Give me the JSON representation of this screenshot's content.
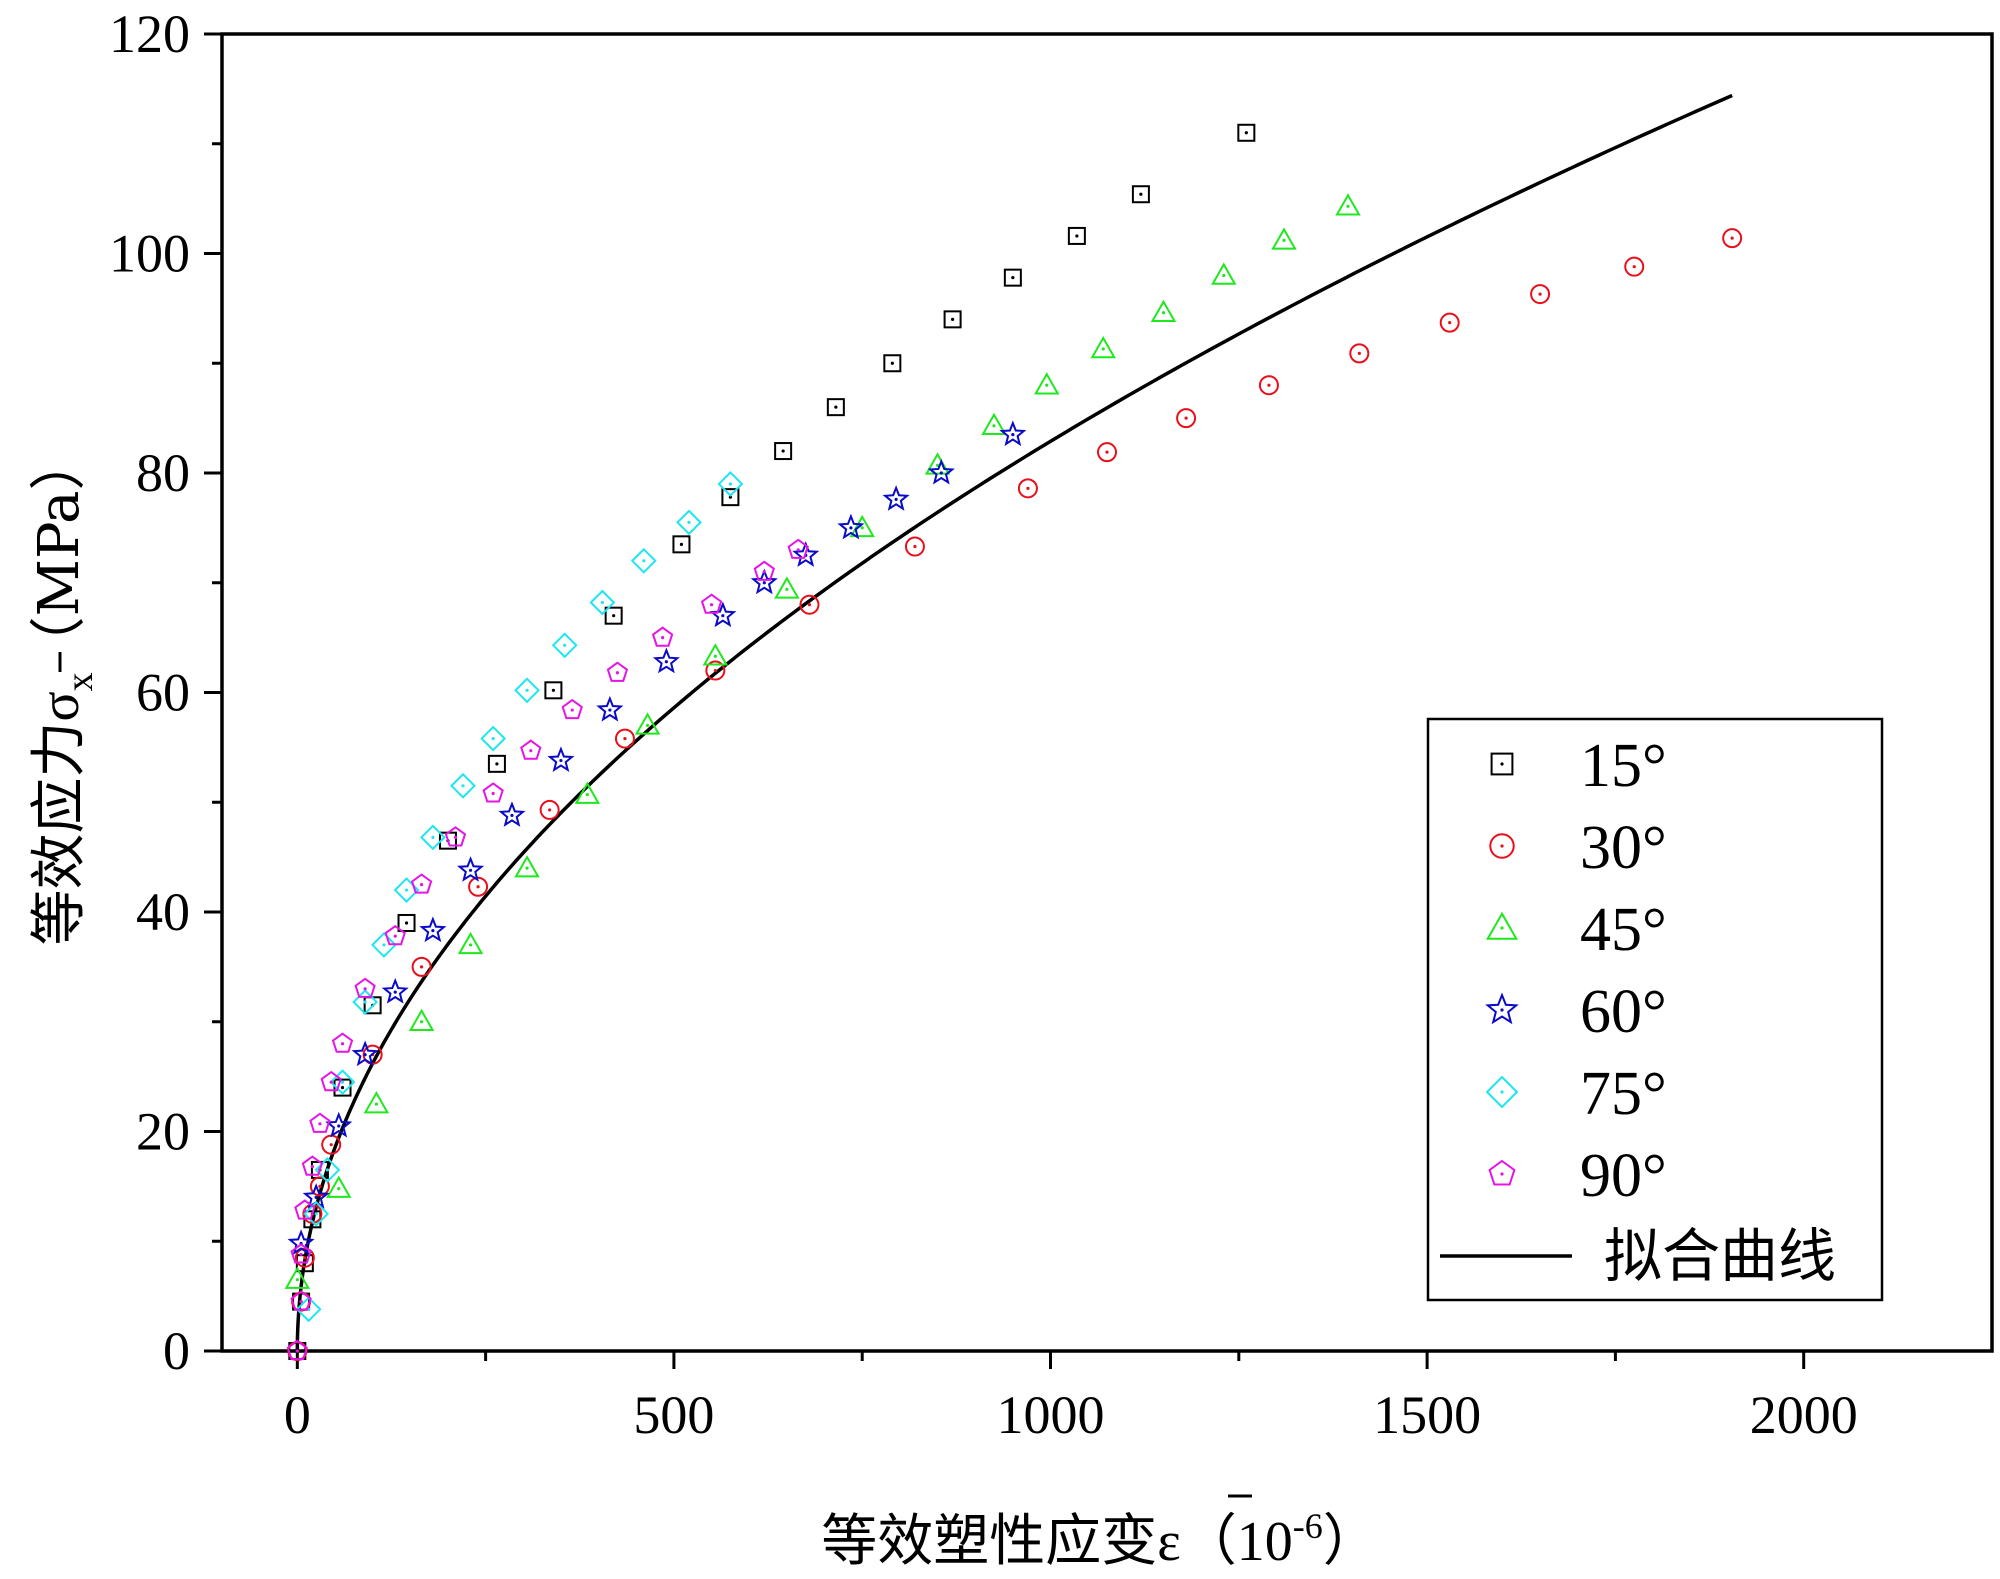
{
  "chart_data": {
    "type": "scatter",
    "xlabel": "等效塑性应变ε（10-6）",
    "xlabel_parts": {
      "main": "等效塑性应变",
      "symbol": "ε",
      "unit_open": "（10",
      "unit_exp": "-6",
      "unit_close": "）"
    },
    "ylabel": "等效应力σx（MPa）",
    "ylabel_parts": {
      "main": "等效应力",
      "symbol": "σ",
      "subscript": "x",
      "unit": "（MPa）"
    },
    "xlim": [
      -100,
      2250
    ],
    "ylim": [
      0,
      120
    ],
    "xticks": [
      0,
      500,
      1000,
      1500,
      2000
    ],
    "xtick_labels": [
      "0",
      "500",
      "1000",
      "1500",
      "2000"
    ],
    "yticks": [
      0,
      20,
      40,
      60,
      80,
      100,
      120
    ],
    "ytick_labels": [
      "0",
      "20",
      "40",
      "60",
      "80",
      "100",
      "120"
    ],
    "grid": false,
    "legend_position": "lower-right",
    "series": [
      {
        "name": "15°",
        "marker": "square",
        "color": "#000000",
        "points": [
          [
            0,
            0
          ],
          [
            5,
            4.5
          ],
          [
            10,
            8
          ],
          [
            20,
            12
          ],
          [
            30,
            16.5
          ],
          [
            60,
            24
          ],
          [
            100,
            31.5
          ],
          [
            145,
            39
          ],
          [
            200,
            46.5
          ],
          [
            265,
            53.5
          ],
          [
            340,
            60.2
          ],
          [
            420,
            67
          ],
          [
            510,
            73.5
          ],
          [
            575,
            77.8
          ],
          [
            645,
            82
          ],
          [
            715,
            86
          ],
          [
            790,
            90
          ],
          [
            870,
            94
          ],
          [
            950,
            97.8
          ],
          [
            1035,
            101.6
          ],
          [
            1120,
            105.4
          ],
          [
            1260,
            111
          ]
        ]
      },
      {
        "name": "30°",
        "marker": "circle",
        "color": "#e8101a",
        "points": [
          [
            0,
            0
          ],
          [
            5,
            4.5
          ],
          [
            10,
            8.5
          ],
          [
            20,
            12.5
          ],
          [
            30,
            15
          ],
          [
            45,
            18.8
          ],
          [
            100,
            27
          ],
          [
            165,
            35
          ],
          [
            240,
            42.3
          ],
          [
            335,
            49.3
          ],
          [
            435,
            55.8
          ],
          [
            555,
            62
          ],
          [
            680,
            68
          ],
          [
            820,
            73.3
          ],
          [
            970,
            78.6
          ],
          [
            1075,
            81.9
          ],
          [
            1180,
            85
          ],
          [
            1290,
            88
          ],
          [
            1410,
            90.9
          ],
          [
            1530,
            93.7
          ],
          [
            1650,
            96.3
          ],
          [
            1775,
            98.8
          ],
          [
            1905,
            101.4
          ]
        ]
      },
      {
        "name": "45°",
        "marker": "triangle",
        "color": "#1ee81e",
        "points": [
          [
            0,
            6.5
          ],
          [
            55,
            14.8
          ],
          [
            105,
            22.5
          ],
          [
            165,
            30
          ],
          [
            230,
            37
          ],
          [
            305,
            44
          ],
          [
            385,
            50.7
          ],
          [
            465,
            57
          ],
          [
            555,
            63.3
          ],
          [
            650,
            69.4
          ],
          [
            750,
            75
          ],
          [
            850,
            80.7
          ],
          [
            925,
            84.3
          ],
          [
            995,
            88
          ],
          [
            1070,
            91.3
          ],
          [
            1150,
            94.6
          ],
          [
            1230,
            98
          ],
          [
            1310,
            101.2
          ],
          [
            1395,
            104.3
          ]
        ]
      },
      {
        "name": "60°",
        "marker": "star",
        "color": "#0a0ac8",
        "points": [
          [
            5,
            9.8
          ],
          [
            25,
            14
          ],
          [
            55,
            20.5
          ],
          [
            90,
            27
          ],
          [
            130,
            32.7
          ],
          [
            180,
            38.3
          ],
          [
            230,
            43.8
          ],
          [
            285,
            48.8
          ],
          [
            350,
            53.8
          ],
          [
            415,
            58.4
          ],
          [
            490,
            62.8
          ],
          [
            565,
            67
          ],
          [
            620,
            70
          ],
          [
            675,
            72.5
          ],
          [
            735,
            75
          ],
          [
            795,
            77.6
          ],
          [
            855,
            80
          ],
          [
            950,
            83.5
          ]
        ]
      },
      {
        "name": "75°",
        "marker": "diamond",
        "color": "#1ee6f0",
        "points": [
          [
            15,
            3.8
          ],
          [
            25,
            12.5
          ],
          [
            40,
            16.5
          ],
          [
            60,
            24.5
          ],
          [
            90,
            31.8
          ],
          [
            115,
            37
          ],
          [
            145,
            42
          ],
          [
            180,
            46.8
          ],
          [
            220,
            51.5
          ],
          [
            260,
            55.8
          ],
          [
            305,
            60.2
          ],
          [
            355,
            64.3
          ],
          [
            405,
            68.2
          ],
          [
            460,
            72
          ],
          [
            520,
            75.5
          ],
          [
            575,
            79
          ]
        ]
      },
      {
        "name": "90°",
        "marker": "pentagon",
        "color": "#e614e6",
        "points": [
          [
            0,
            0
          ],
          [
            5,
            4.5
          ],
          [
            5,
            8.8
          ],
          [
            10,
            12.8
          ],
          [
            20,
            16.8
          ],
          [
            30,
            20.7
          ],
          [
            45,
            24.5
          ],
          [
            60,
            28
          ],
          [
            90,
            33
          ],
          [
            130,
            37.8
          ],
          [
            165,
            42.5
          ],
          [
            210,
            46.8
          ],
          [
            260,
            50.8
          ],
          [
            310,
            54.7
          ],
          [
            365,
            58.4
          ],
          [
            425,
            61.8
          ],
          [
            485,
            65
          ],
          [
            550,
            68
          ],
          [
            620,
            71
          ],
          [
            665,
            73
          ]
        ]
      }
    ],
    "fit_curve": {
      "name": "拟合曲线",
      "color": "#000000",
      "model": "sigma = 2.60 * epsilon^0.5",
      "x_end": 1905,
      "y_end": 114.4
    }
  }
}
